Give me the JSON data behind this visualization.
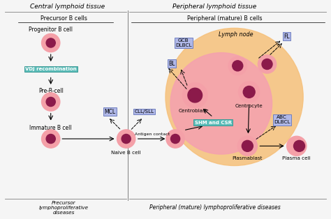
{
  "fig_width": 4.74,
  "fig_height": 3.14,
  "dpi": 100,
  "bg_color": "#f5f5f5",
  "cell_outer_color": "#f4a0a8",
  "cell_inner_color": "#8b1a4a",
  "lymph_node_outer": "#f5c07a",
  "lymph_node_inner": "#f4a0b0",
  "vdj_box_color": "#5bbcb8",
  "shm_box_color": "#5bbcb8",
  "label_box_color": "#b0b8e8",
  "title_central": "Central lymphoid tissue",
  "title_peripheral": "Peripheral lymphoid tissue",
  "subtitle_precursor": "Precursor B cells",
  "subtitle_peripheral_mature": "Peripheral (mature) B cells",
  "bottom_left": "Precursor\nlymphoproliferative\ndiseases",
  "bottom_right": "Peripheral (mature) lymphoproliferative diseases"
}
